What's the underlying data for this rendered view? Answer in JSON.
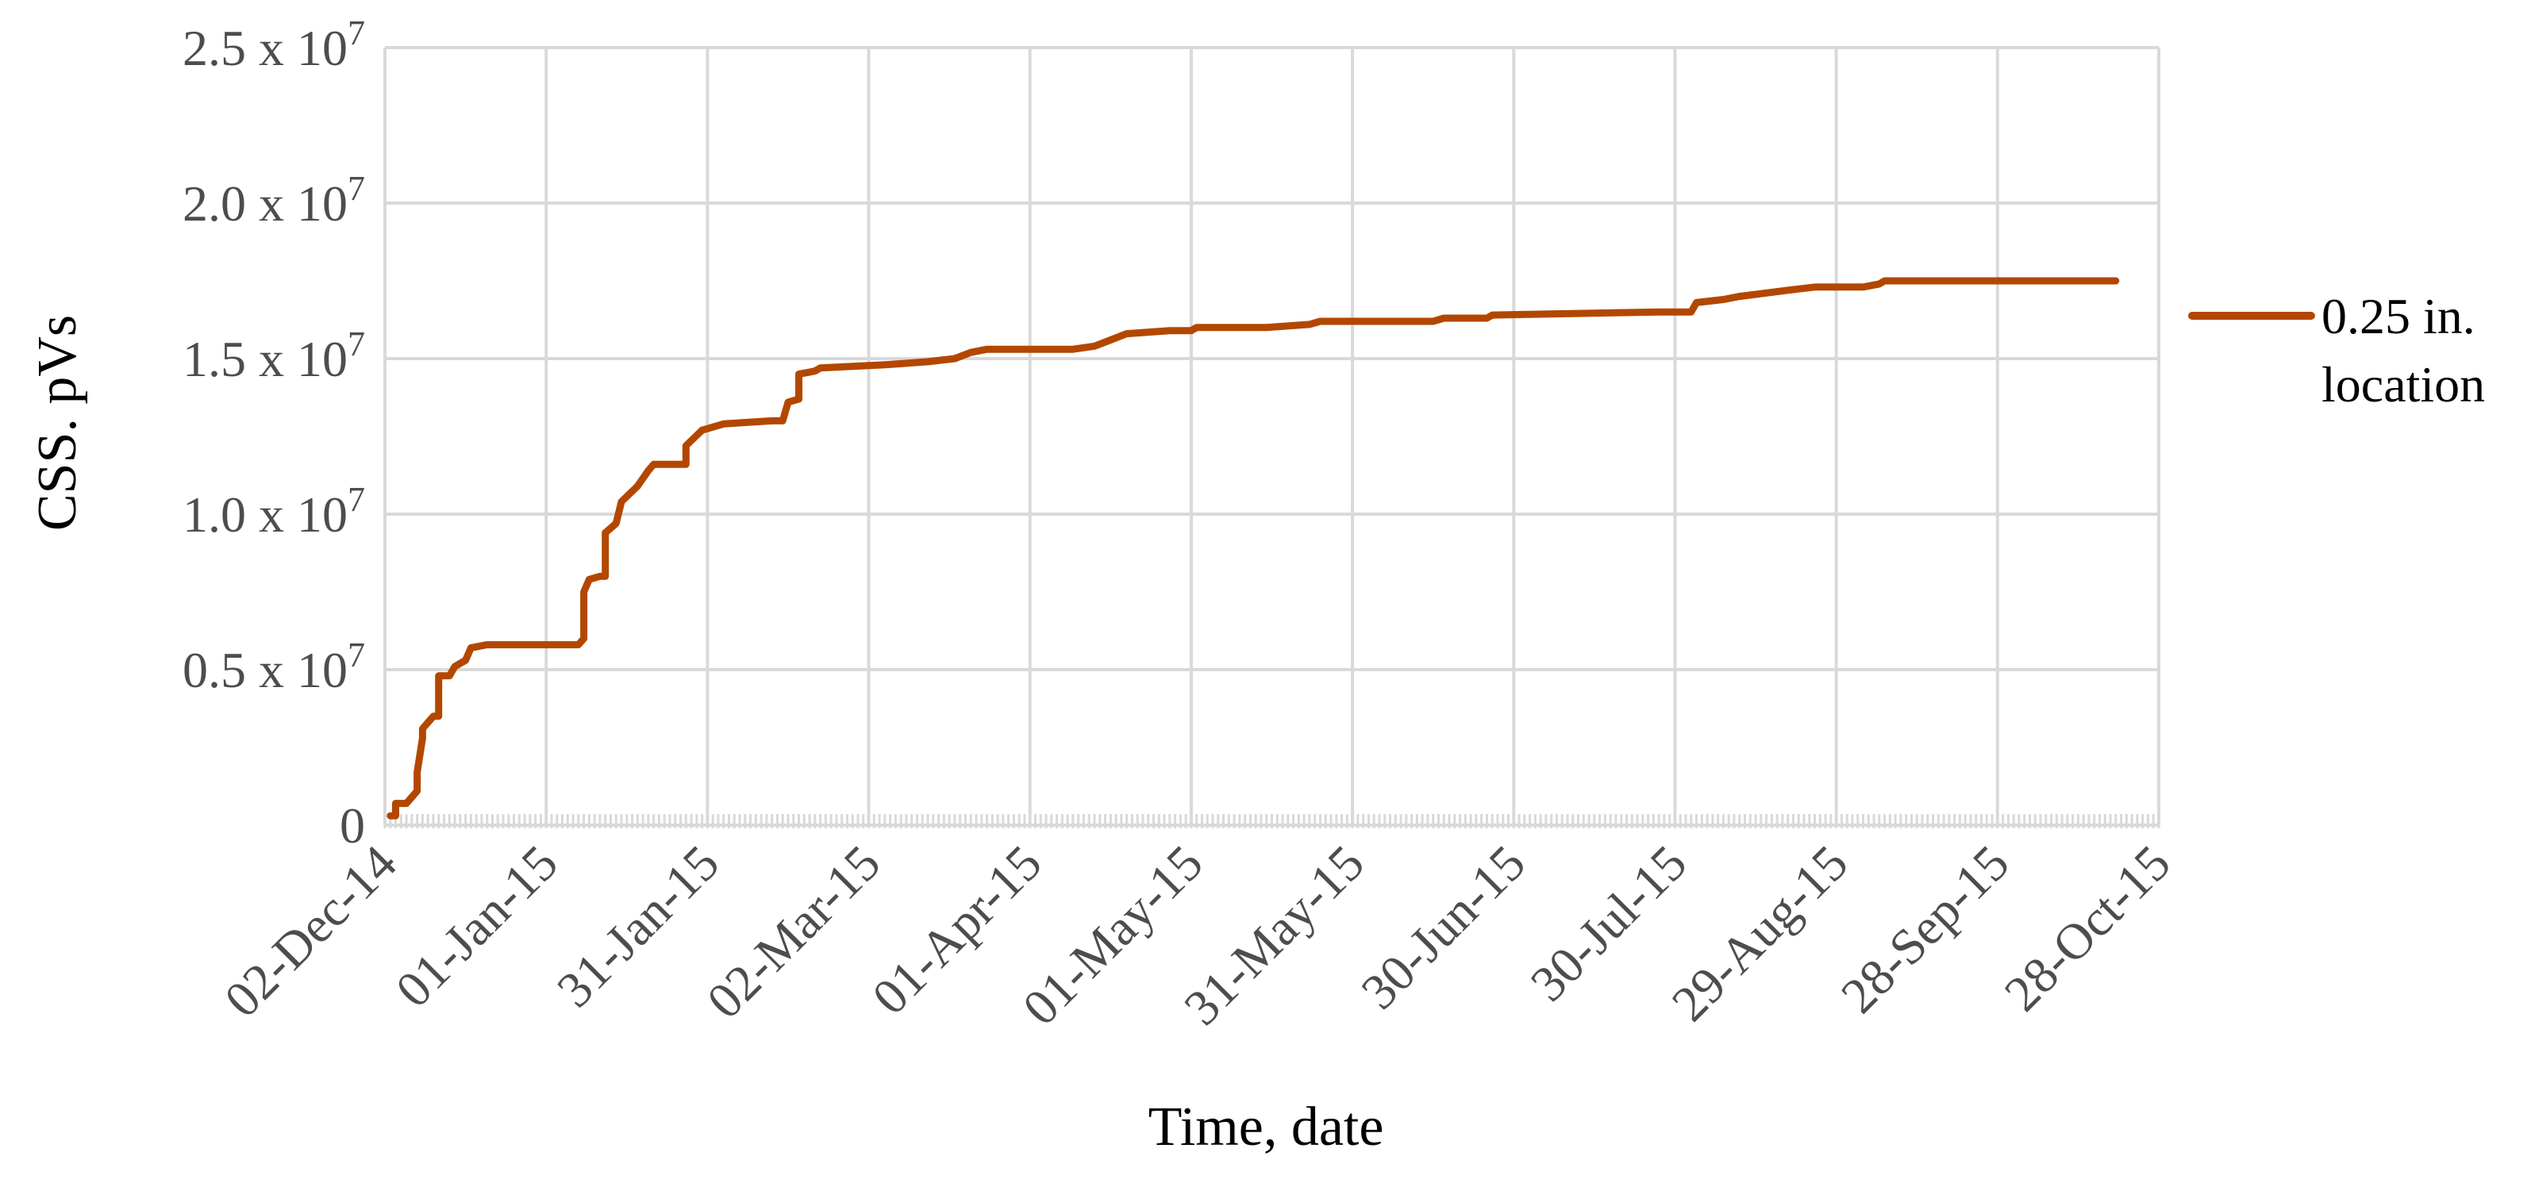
{
  "chart_data": {
    "type": "line",
    "title": "",
    "xlabel": "Time, date",
    "ylabel": "CSS. pVs",
    "x_scale": "date",
    "xlim": [
      "2014-12-02",
      "2015-10-28"
    ],
    "x_tick_interval_days": 30,
    "x_tick_labels": [
      "02-Dec-14",
      "01-Jan-15",
      "31-Jan-15",
      "02-Mar-15",
      "01-Apr-15",
      "01-May-15",
      "31-May-15",
      "30-Jun-15",
      "30-Jul-15",
      "29-Aug-15",
      "28-Sep-15",
      "28-Oct-15"
    ],
    "ylim": [
      0,
      25000000
    ],
    "y_tick_values": [
      0,
      5000000,
      10000000,
      15000000,
      20000000,
      25000000
    ],
    "y_tick_labels": [
      {
        "base": "0",
        "exp": ""
      },
      {
        "base": "0.5 x 10",
        "exp": "7"
      },
      {
        "base": "1.0 x 10",
        "exp": "7"
      },
      {
        "base": "1.5 x 10",
        "exp": "7"
      },
      {
        "base": "2.0 x 10",
        "exp": "7"
      },
      {
        "base": "2.5 x 10",
        "exp": "7"
      }
    ],
    "grid": true,
    "legend_position": "right",
    "series": [
      {
        "name": "0.25 in. location",
        "color": "#b34700",
        "points": [
          [
            "2014-12-03",
            300000
          ],
          [
            "2014-12-04",
            300000
          ],
          [
            "2014-12-04",
            700000
          ],
          [
            "2014-12-06",
            700000
          ],
          [
            "2014-12-07",
            900000
          ],
          [
            "2014-12-08",
            1100000
          ],
          [
            "2014-12-08",
            1700000
          ],
          [
            "2014-12-09",
            2800000
          ],
          [
            "2014-12-09",
            3100000
          ],
          [
            "2014-12-10",
            3300000
          ],
          [
            "2014-12-11",
            3500000
          ],
          [
            "2014-12-12",
            3500000
          ],
          [
            "2014-12-12",
            4800000
          ],
          [
            "2014-12-14",
            4800000
          ],
          [
            "2014-12-15",
            5100000
          ],
          [
            "2014-12-17",
            5300000
          ],
          [
            "2014-12-18",
            5700000
          ],
          [
            "2014-12-21",
            5800000
          ],
          [
            "2015-01-04",
            5800000
          ],
          [
            "2015-01-07",
            5800000
          ],
          [
            "2015-01-08",
            6000000
          ],
          [
            "2015-01-08",
            7500000
          ],
          [
            "2015-01-09",
            7900000
          ],
          [
            "2015-01-11",
            8000000
          ],
          [
            "2015-01-12",
            8000000
          ],
          [
            "2015-01-12",
            9400000
          ],
          [
            "2015-01-14",
            9700000
          ],
          [
            "2015-01-15",
            10400000
          ],
          [
            "2015-01-18",
            10900000
          ],
          [
            "2015-01-20",
            11400000
          ],
          [
            "2015-01-21",
            11600000
          ],
          [
            "2015-01-27",
            11600000
          ],
          [
            "2015-01-27",
            12200000
          ],
          [
            "2015-01-30",
            12700000
          ],
          [
            "2015-02-03",
            12900000
          ],
          [
            "2015-02-12",
            13000000
          ],
          [
            "2015-02-14",
            13000000
          ],
          [
            "2015-02-15",
            13600000
          ],
          [
            "2015-02-17",
            13700000
          ],
          [
            "2015-02-17",
            14500000
          ],
          [
            "2015-02-20",
            14600000
          ],
          [
            "2015-02-21",
            14700000
          ],
          [
            "2015-03-05",
            14800000
          ],
          [
            "2015-03-13",
            14900000
          ],
          [
            "2015-03-18",
            15000000
          ],
          [
            "2015-03-21",
            15200000
          ],
          [
            "2015-03-24",
            15300000
          ],
          [
            "2015-04-09",
            15300000
          ],
          [
            "2015-04-13",
            15400000
          ],
          [
            "2015-04-16",
            15600000
          ],
          [
            "2015-04-19",
            15800000
          ],
          [
            "2015-04-27",
            15900000
          ],
          [
            "2015-05-01",
            15900000
          ],
          [
            "2015-05-02",
            16000000
          ],
          [
            "2015-05-15",
            16000000
          ],
          [
            "2015-05-23",
            16100000
          ],
          [
            "2015-05-25",
            16200000
          ],
          [
            "2015-06-15",
            16200000
          ],
          [
            "2015-06-17",
            16300000
          ],
          [
            "2015-06-25",
            16300000
          ],
          [
            "2015-06-26",
            16400000
          ],
          [
            "2015-07-27",
            16500000
          ],
          [
            "2015-08-02",
            16500000
          ],
          [
            "2015-08-03",
            16800000
          ],
          [
            "2015-08-08",
            16900000
          ],
          [
            "2015-08-11",
            17000000
          ],
          [
            "2015-08-20",
            17200000
          ],
          [
            "2015-08-25",
            17300000
          ],
          [
            "2015-09-03",
            17300000
          ],
          [
            "2015-09-06",
            17400000
          ],
          [
            "2015-09-07",
            17500000
          ],
          [
            "2015-10-20",
            17500000
          ]
        ]
      }
    ]
  }
}
